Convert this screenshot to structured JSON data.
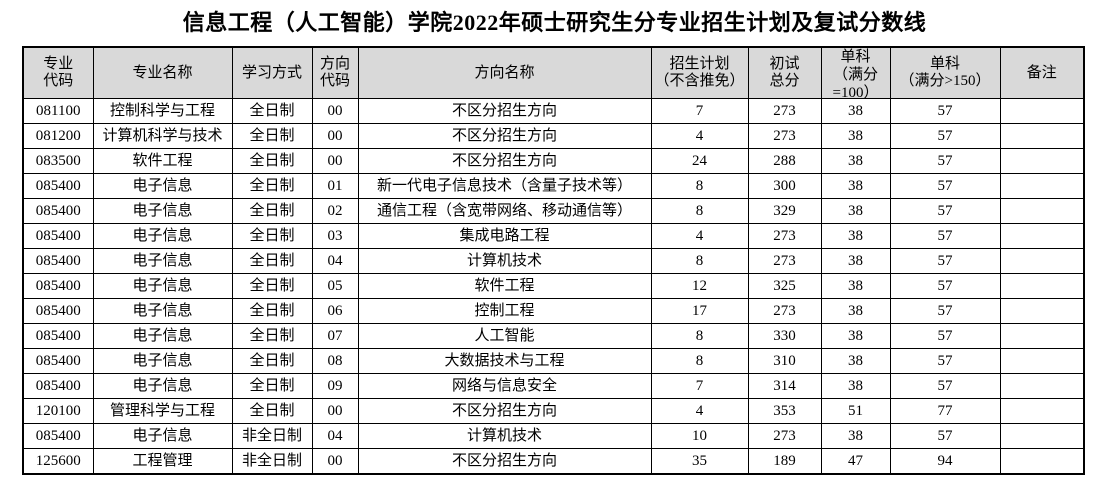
{
  "title": "信息工程（人工智能）学院2022年硕士研究生分专业招生计划及复试分数线",
  "table": {
    "column_keys": [
      "major-code",
      "major-name",
      "study-mode",
      "direction-code",
      "direction-name",
      "enrollment-plan",
      "initial-total-score",
      "single-subject-100",
      "single-subject-150",
      "remarks"
    ],
    "headers": [
      "专业\n代码",
      "专业名称",
      "学习方式",
      "方向\n代码",
      "方向名称",
      "招生计划\n（不含推免）",
      "初试\n总分",
      "单科\n（满分\n=100）",
      "单科\n（满分>150）",
      "备注"
    ],
    "rows": [
      [
        "081100",
        "控制科学与工程",
        "全日制",
        "00",
        "不区分招生方向",
        "7",
        "273",
        "38",
        "57",
        ""
      ],
      [
        "081200",
        "计算机科学与技术",
        "全日制",
        "00",
        "不区分招生方向",
        "4",
        "273",
        "38",
        "57",
        ""
      ],
      [
        "083500",
        "软件工程",
        "全日制",
        "00",
        "不区分招生方向",
        "24",
        "288",
        "38",
        "57",
        ""
      ],
      [
        "085400",
        "电子信息",
        "全日制",
        "01",
        "新一代电子信息技术（含量子技术等）",
        "8",
        "300",
        "38",
        "57",
        ""
      ],
      [
        "085400",
        "电子信息",
        "全日制",
        "02",
        "通信工程（含宽带网络、移动通信等）",
        "8",
        "329",
        "38",
        "57",
        ""
      ],
      [
        "085400",
        "电子信息",
        "全日制",
        "03",
        "集成电路工程",
        "4",
        "273",
        "38",
        "57",
        ""
      ],
      [
        "085400",
        "电子信息",
        "全日制",
        "04",
        "计算机技术",
        "8",
        "273",
        "38",
        "57",
        ""
      ],
      [
        "085400",
        "电子信息",
        "全日制",
        "05",
        "软件工程",
        "12",
        "325",
        "38",
        "57",
        ""
      ],
      [
        "085400",
        "电子信息",
        "全日制",
        "06",
        "控制工程",
        "17",
        "273",
        "38",
        "57",
        ""
      ],
      [
        "085400",
        "电子信息",
        "全日制",
        "07",
        "人工智能",
        "8",
        "330",
        "38",
        "57",
        ""
      ],
      [
        "085400",
        "电子信息",
        "全日制",
        "08",
        "大数据技术与工程",
        "8",
        "310",
        "38",
        "57",
        ""
      ],
      [
        "085400",
        "电子信息",
        "全日制",
        "09",
        "网络与信息安全",
        "7",
        "314",
        "38",
        "57",
        ""
      ],
      [
        "120100",
        "管理科学与工程",
        "全日制",
        "00",
        "不区分招生方向",
        "4",
        "353",
        "51",
        "77",
        ""
      ],
      [
        "085400",
        "电子信息",
        "非全日制",
        "04",
        "计算机技术",
        "10",
        "273",
        "38",
        "57",
        ""
      ],
      [
        "125600",
        "工程管理",
        "非全日制",
        "00",
        "不区分招生方向",
        "35",
        "189",
        "47",
        "94",
        ""
      ]
    ]
  }
}
